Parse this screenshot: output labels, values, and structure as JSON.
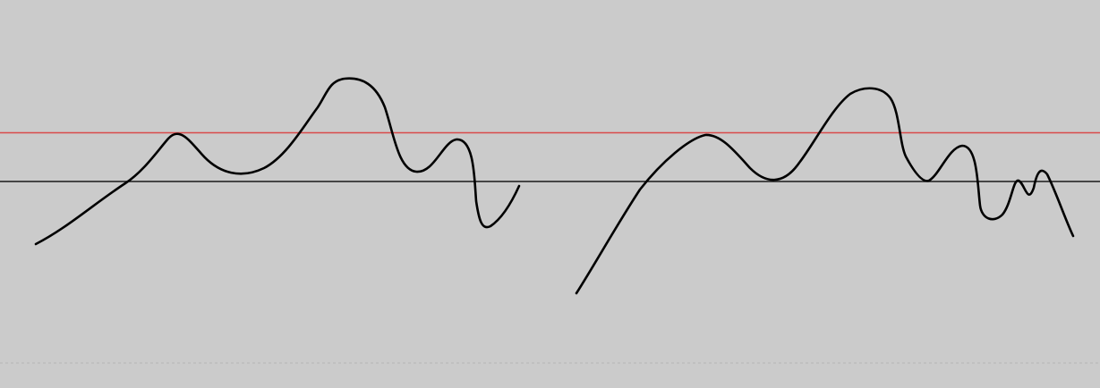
{
  "canvas": {
    "background": "#cbcbcb",
    "stroke_color": "#000000",
    "upper_guide_color": "#d94a4a",
    "lower_guide_color": "#1a1a1a",
    "bottom_border_color": "#b4b4b4"
  },
  "strokes": [
    {
      "name": "handwritten-stroke-1"
    },
    {
      "name": "handwritten-stroke-2"
    }
  ]
}
